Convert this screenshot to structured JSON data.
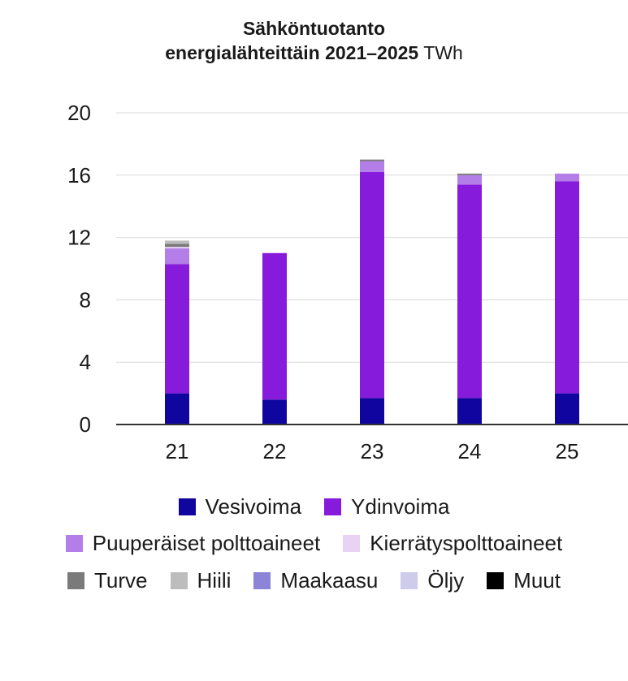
{
  "chart_data": {
    "type": "bar",
    "stacked": true,
    "title_bold": "Sähköntuotanto",
    "title_bold_line2": "energialähteittäin 2021–2025",
    "title_unit": "TWh",
    "categories": [
      "21",
      "22",
      "23",
      "24",
      "25"
    ],
    "ylim": [
      0,
      20
    ],
    "yticks": [
      "0",
      "4",
      "8",
      "12",
      "16",
      "20"
    ],
    "grid": true,
    "legend_position": "bottom",
    "series": [
      {
        "name": "Vesivoima",
        "color": "#10069f",
        "values": [
          2.0,
          1.6,
          1.7,
          1.7,
          2.0
        ]
      },
      {
        "name": "Ydinvoima",
        "color": "#871bdb",
        "values": [
          8.3,
          9.4,
          14.5,
          13.7,
          13.6
        ]
      },
      {
        "name": "Puuperäiset polttoaineet",
        "color": "#b37ee8",
        "values": [
          1.0,
          0.0,
          0.7,
          0.6,
          0.5
        ]
      },
      {
        "name": "Kierrätyspolttoaineet",
        "color": "#e8d2f6",
        "values": [
          0.1,
          0.0,
          0.0,
          0.0,
          0.0
        ]
      },
      {
        "name": "Turve",
        "color": "#7a7a7a",
        "values": [
          0.2,
          0.0,
          0.1,
          0.1,
          0.0
        ]
      },
      {
        "name": "Hiili",
        "color": "#bdbdbd",
        "values": [
          0.2,
          0.0,
          0.0,
          0.0,
          0.0
        ]
      },
      {
        "name": "Maakaasu",
        "color": "#8b84d7",
        "values": [
          0.0,
          0.0,
          0.0,
          0.0,
          0.0
        ]
      },
      {
        "name": "Öljy",
        "color": "#cfcbea",
        "values": [
          0.0,
          0.0,
          0.0,
          0.0,
          0.0
        ]
      },
      {
        "name": "Muut",
        "color": "#000000",
        "values": [
          0.0,
          0.0,
          0.0,
          0.0,
          0.0
        ]
      }
    ]
  },
  "legend": {
    "rows": [
      [
        0,
        1
      ],
      [
        2,
        3
      ],
      [
        4,
        5,
        6,
        7,
        8
      ]
    ]
  }
}
